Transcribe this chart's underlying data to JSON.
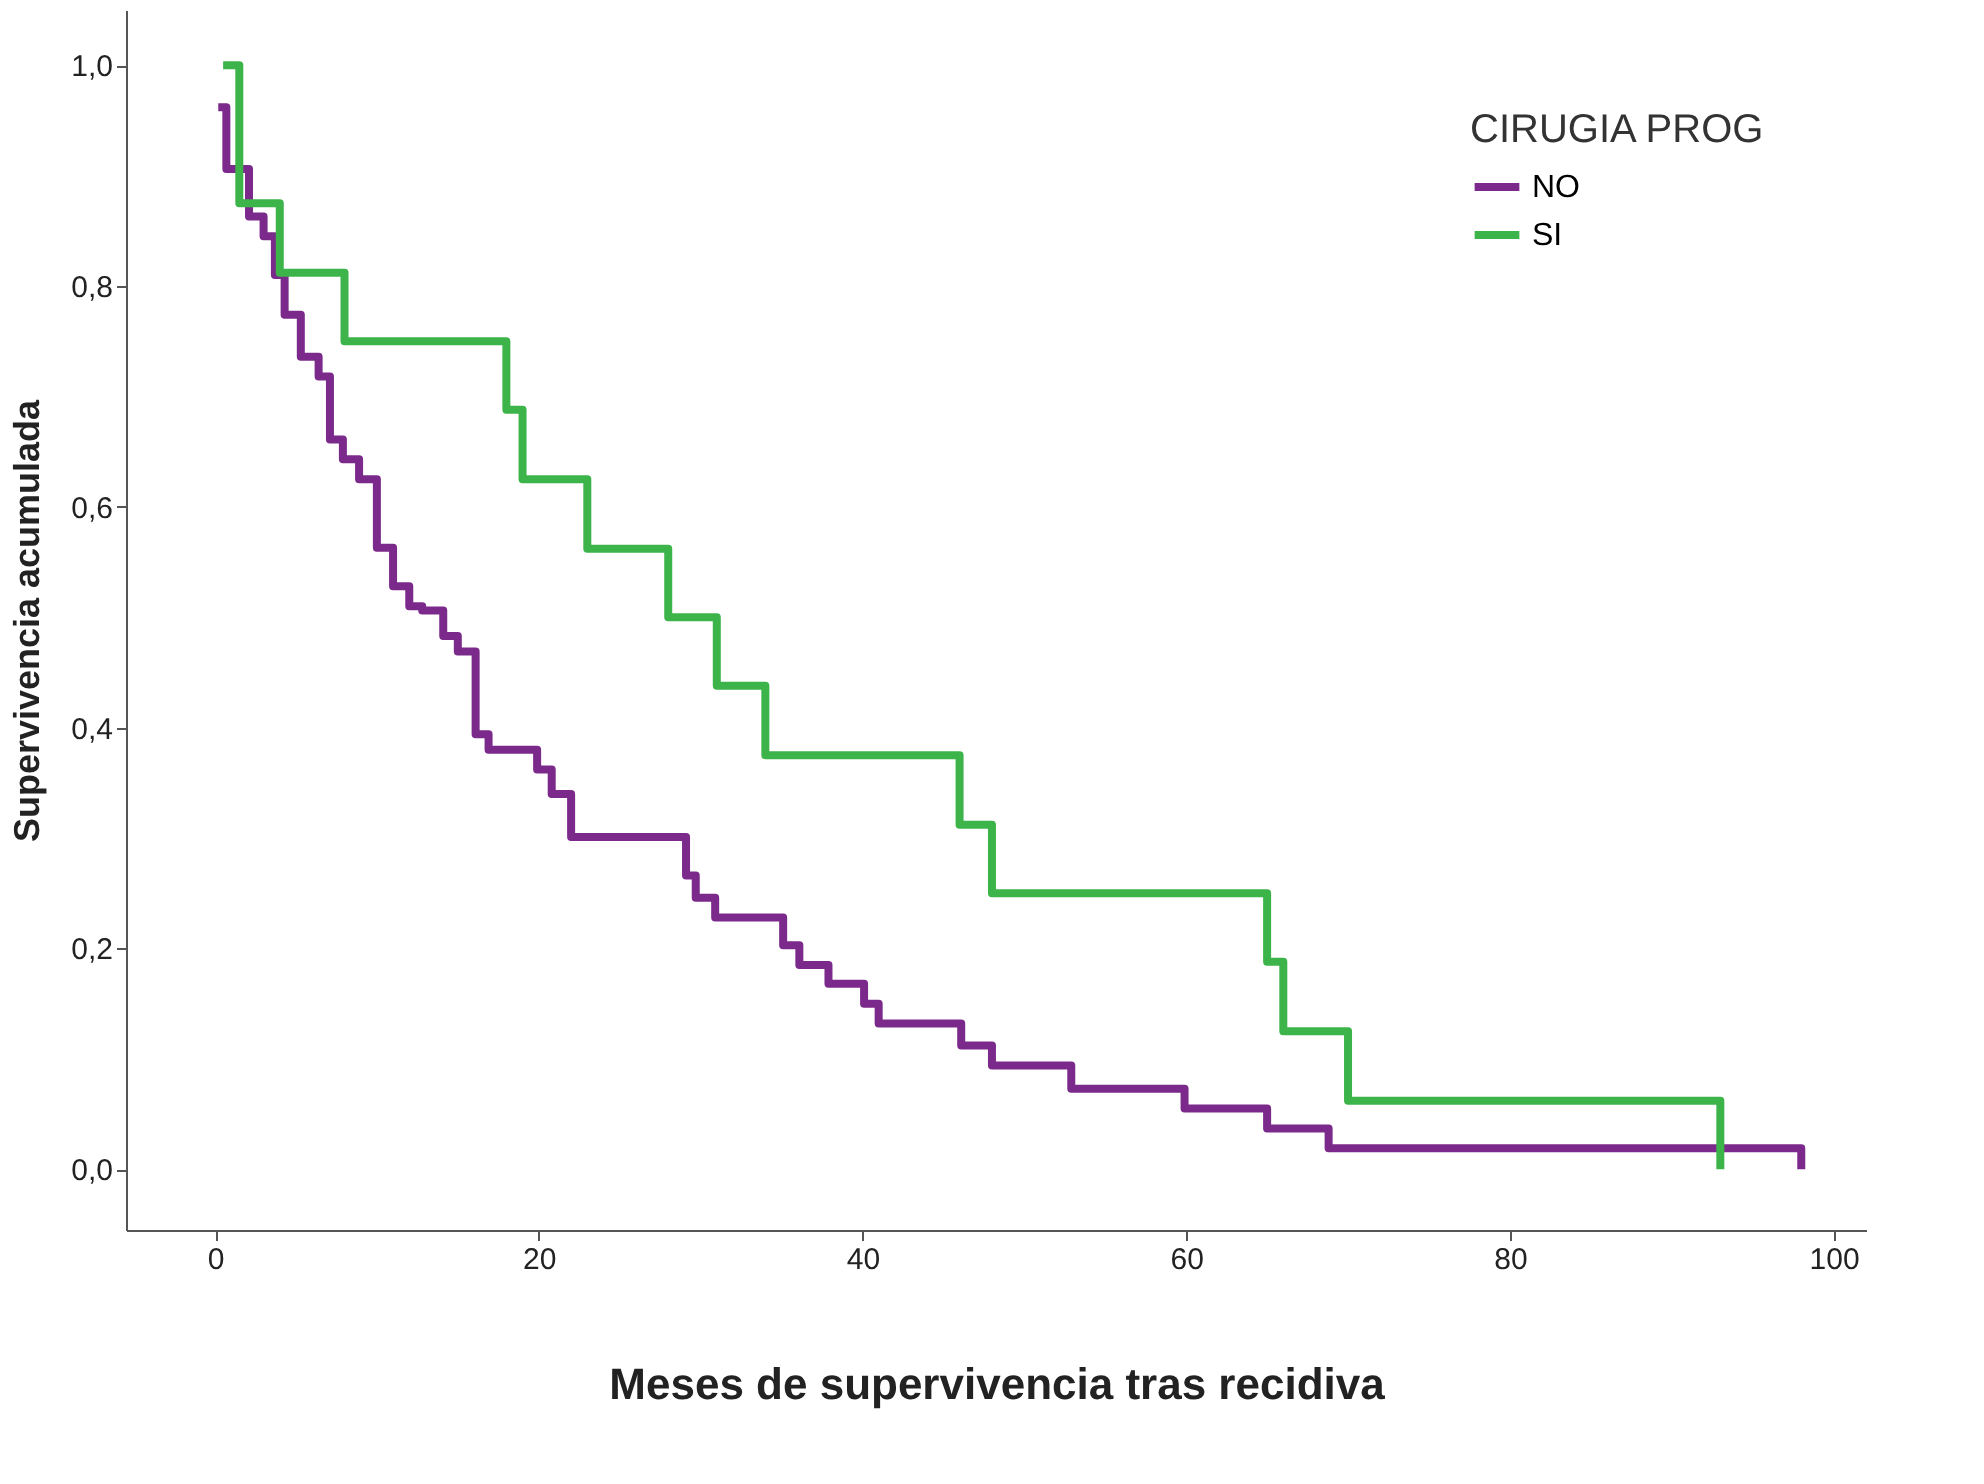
{
  "chart_data": {
    "type": "step",
    "xlabel": "Meses de supervivencia tras recidiva",
    "ylabel": "Supervivencia acumulada",
    "legend_title": "CIRUGIA PROG",
    "legend": "top right",
    "grid": false,
    "line_style": "solid",
    "marker": "none",
    "xlim": [
      -5.5,
      102
    ],
    "ylim": [
      -0.055,
      1.05
    ],
    "xticks": [
      0,
      20,
      40,
      60,
      80,
      100
    ],
    "yticks": [
      {
        "value": 0,
        "label": "0,0"
      },
      {
        "value": 0.2,
        "label": "0,2"
      },
      {
        "value": 0.4,
        "label": "0,4"
      },
      {
        "value": 0.6,
        "label": "0,6"
      },
      {
        "value": 0.8,
        "label": "0,8"
      },
      {
        "value": 1.0,
        "label": "1,0"
      }
    ],
    "series": [
      {
        "name": "NO",
        "color": "#7b2a8b",
        "x": [
          0.2,
          0.7,
          2.1,
          3.0,
          3.7,
          4.3,
          5.3,
          6.4,
          7.1,
          7.9,
          8.9,
          10.0,
          11.0,
          12.0,
          12.8,
          14.1,
          15.0,
          16.1,
          16.9,
          19.9,
          20.8,
          22.0,
          23.0,
          29.1,
          29.7,
          30.9,
          35.1,
          36.1,
          37.9,
          40.1,
          41.0,
          46.1,
          48.0,
          52.9,
          59.9,
          65.0,
          68.8,
          98.0
        ],
        "values": [
          0.962,
          0.906,
          0.863,
          0.845,
          0.81,
          0.774,
          0.736,
          0.718,
          0.661,
          0.643,
          0.625,
          0.563,
          0.528,
          0.51,
          0.506,
          0.483,
          0.469,
          0.394,
          0.38,
          0.362,
          0.34,
          0.301,
          0.301,
          0.266,
          0.246,
          0.228,
          0.203,
          0.185,
          0.168,
          0.15,
          0.132,
          0.112,
          0.094,
          0.073,
          0.055,
          0.037,
          0.019,
          0.0
        ]
      },
      {
        "name": "SI",
        "color": "#3cb44a",
        "x": [
          0.5,
          1.5,
          4.0,
          8.0,
          18.0,
          19.0,
          23.0,
          28.0,
          31.0,
          34.0,
          46.0,
          48.0,
          65.0,
          66.0,
          70.0,
          93.0
        ],
        "values": [
          1.0,
          0.875,
          0.812,
          0.75,
          0.688,
          0.625,
          0.562,
          0.5,
          0.438,
          0.375,
          0.312,
          0.25,
          0.188,
          0.125,
          0.062,
          0.0
        ]
      }
    ]
  }
}
